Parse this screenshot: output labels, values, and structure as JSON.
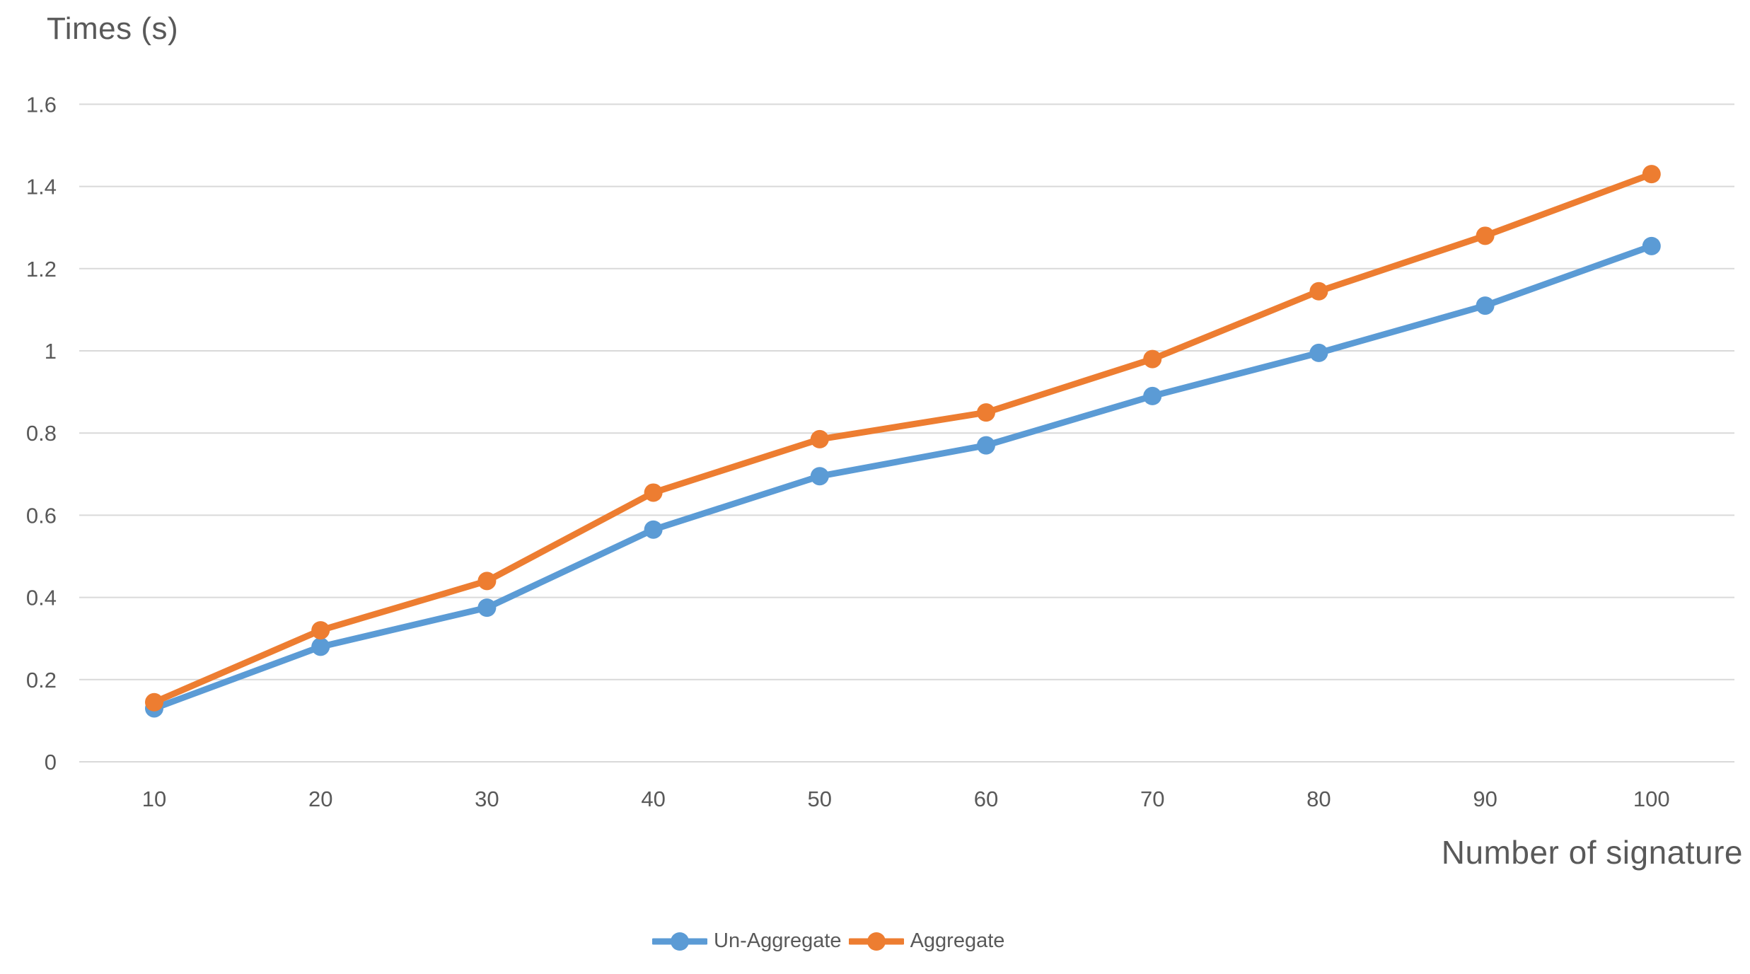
{
  "chart_data": {
    "type": "line",
    "title": "",
    "ylabel": "Times (s)",
    "xlabel": "Number of signature",
    "categories": [
      10,
      20,
      30,
      40,
      50,
      60,
      70,
      80,
      90,
      100
    ],
    "series": [
      {
        "name": "Un-Aggregate",
        "color": "#5B9BD5",
        "values": [
          0.13,
          0.28,
          0.375,
          0.565,
          0.695,
          0.77,
          0.89,
          0.995,
          1.11,
          1.255
        ]
      },
      {
        "name": "Aggregate",
        "color": "#ED7D31",
        "values": [
          0.145,
          0.32,
          0.44,
          0.655,
          0.785,
          0.85,
          0.98,
          1.145,
          1.28,
          1.43
        ]
      }
    ],
    "ylim": [
      0,
      1.6
    ],
    "y_ticks": [
      "0",
      "0.2",
      "0.4",
      "0.6",
      "0.8",
      "1",
      "1.2",
      "1.4",
      "1.6"
    ],
    "x_tick_labels": [
      "10",
      "20",
      "30",
      "40",
      "50",
      "60",
      "70",
      "80",
      "90",
      "100"
    ],
    "grid": "horizontal-only",
    "legend_position": "bottom-center",
    "gridline_color": "#D9D9D9",
    "text_color": "#595959",
    "marker": "circle"
  }
}
